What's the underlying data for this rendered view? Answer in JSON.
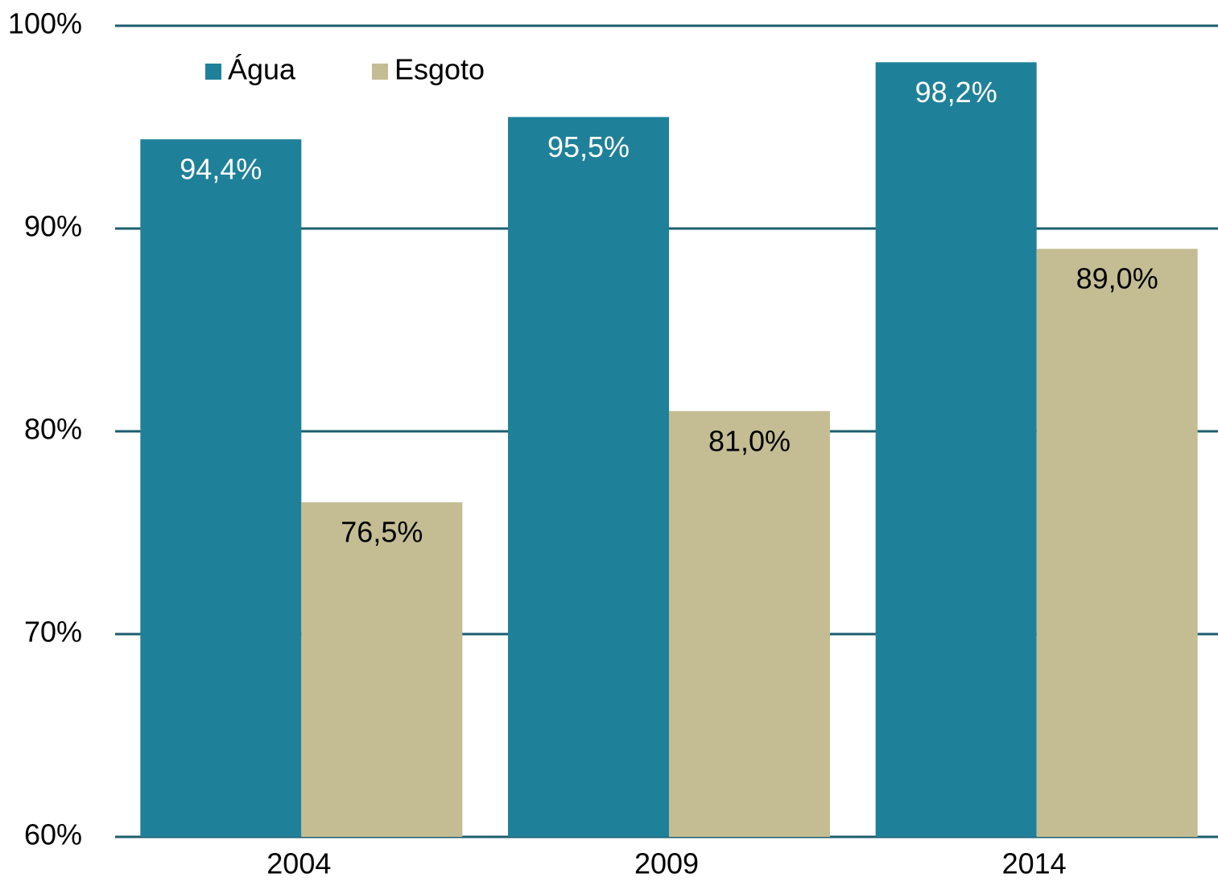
{
  "chart_data": {
    "type": "bar",
    "categories": [
      "2004",
      "2009",
      "2014"
    ],
    "series": [
      {
        "name": "Água",
        "color": "#1f8199",
        "values": [
          94.4,
          95.5,
          98.2
        ],
        "value_labels": [
          "94,4%",
          "95,5%",
          "98,2%"
        ]
      },
      {
        "name": "Esgoto",
        "color": "#c4bd94",
        "values": [
          76.5,
          81.0,
          89.0
        ],
        "value_labels": [
          "76,5%",
          "81,0%",
          "89,0%"
        ]
      }
    ],
    "ylim": [
      60,
      100
    ],
    "yticks": [
      {
        "value": 60,
        "label": "60%"
      },
      {
        "value": 70,
        "label": "70%"
      },
      {
        "value": 80,
        "label": "80%"
      },
      {
        "value": 90,
        "label": "90%"
      },
      {
        "value": 100,
        "label": "100%"
      }
    ],
    "grid": true,
    "legend": "upper left"
  }
}
